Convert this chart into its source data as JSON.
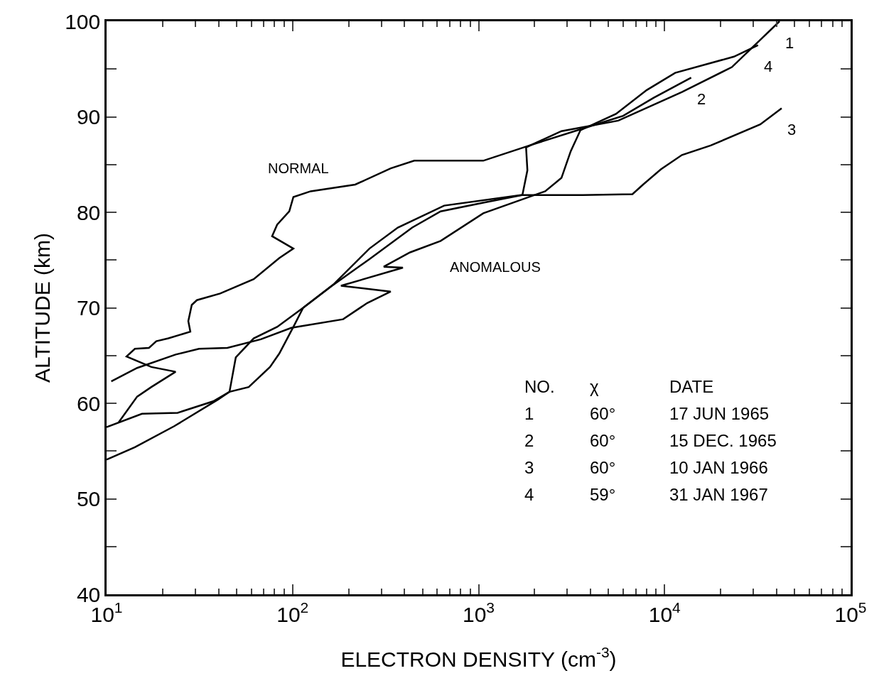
{
  "chart_data": {
    "type": "line",
    "xlabel": "ELECTRON DENSITY (cm$^{-3}$)",
    "ylabel": "ALTITUDE (km)",
    "log": "x",
    "grid": false,
    "legend": false,
    "marker": "none",
    "line_style": "solid",
    "xlim": [
      10,
      100000
    ],
    "ylim": [
      40,
      100
    ],
    "xticks": [
      {
        "value": 10,
        "label": "10$^{1}$"
      },
      {
        "value": 100,
        "label": "10$^{2}$"
      },
      {
        "value": 1000,
        "label": "10$^{3}$"
      },
      {
        "value": 10000,
        "label": "10$^{4}$"
      },
      {
        "value": 100000,
        "label": "10$^{5}$"
      }
    ],
    "yticks": [
      40,
      {
        "value": 45,
        "label": null
      },
      50,
      {
        "value": 55,
        "label": null
      },
      60,
      {
        "value": 65,
        "label": null
      },
      70,
      {
        "value": 75,
        "label": null
      },
      80,
      {
        "value": 85,
        "label": null
      },
      90,
      {
        "value": 95,
        "label": null
      },
      100
    ],
    "series": [
      {
        "name": "1",
        "color": "#000000",
        "x": [
          10,
          15.5,
          24.1,
          37.4,
          45.8,
          58.1,
          75.6,
          84.8,
          101,
          114,
          163,
          259,
          440,
          625,
          1060,
          1720,
          1830,
          1800,
          2790,
          5640,
          12400,
          23000,
          41500
        ],
        "values": [
          57.5,
          58.9,
          59.0,
          60.2,
          61.2,
          61.7,
          63.8,
          65.2,
          68.0,
          70.0,
          72.3,
          75.1,
          78.4,
          80.1,
          81.0,
          81.8,
          84.4,
          86.8,
          88.5,
          89.6,
          92.6,
          95.2,
          100.0
        ]
      },
      {
        "name": "2",
        "color": "#000000",
        "x": [
          11.6,
          14.6,
          17.4,
          23.5,
          17.4,
          12.8,
          14.2,
          16.9,
          18.5,
          21.5,
          28.2,
          27.5,
          28.7,
          30.6,
          40.8,
          61.8,
          84.8,
          101,
          77.6,
          82.6,
          96,
          101,
          125,
          217,
          337,
          451,
          1060,
          1880,
          3960,
          5990,
          8750,
          13900
        ],
        "values": [
          58.0,
          60.7,
          61.7,
          63.3,
          63.8,
          64.9,
          65.7,
          65.8,
          66.5,
          66.8,
          67.5,
          68.6,
          70.3,
          70.8,
          71.5,
          73.0,
          75.2,
          76.2,
          77.5,
          78.7,
          80.1,
          81.6,
          82.2,
          82.9,
          84.6,
          85.4,
          85.4,
          87.0,
          89.0,
          90.1,
          92.0,
          94.1
        ]
      },
      {
        "name": "3",
        "color": "#000000",
        "x": [
          10,
          14.2,
          23.1,
          39.8,
          45.8,
          49.5,
          61.8,
          82.6,
          114,
          167,
          259,
          368,
          653,
          1690,
          3630,
          6720,
          7660,
          9550,
          12400,
          17700,
          32700,
          42600
        ],
        "values": [
          54.1,
          55.4,
          57.6,
          60.4,
          61.2,
          64.8,
          66.8,
          68.0,
          70.0,
          72.5,
          76.2,
          78.4,
          80.7,
          81.8,
          81.8,
          81.9,
          82.9,
          84.5,
          86.0,
          87.0,
          89.2,
          90.9
        ]
      },
      {
        "name": "4",
        "color": "#000000",
        "x": [
          10.6,
          14.6,
          23.5,
          31.4,
          44.6,
          67.5,
          98.4,
          187,
          252,
          337,
          182,
          392,
          309,
          428,
          625,
          1060,
          2280,
          2790,
          3130,
          3530,
          5480,
          8020,
          11400,
          23600,
          31800
        ],
        "values": [
          62.3,
          63.7,
          65.1,
          65.7,
          65.8,
          66.7,
          67.9,
          68.8,
          70.5,
          71.7,
          72.3,
          74.2,
          74.3,
          75.8,
          77.0,
          79.9,
          82.2,
          83.6,
          86.4,
          88.6,
          90.3,
          92.8,
          94.6,
          96.3,
          97.5
        ]
      }
    ],
    "annotations": [
      "NORMAL",
      "ANOMALOUS",
      "NO.\tχ\tDATE",
      "1\t60°\t17 JUN 1965",
      "2\t60°\t15 DEC. 1965",
      "3\t60°\t10 JAN 1966",
      "4\t59°\t31 JAN 1967"
    ]
  }
}
